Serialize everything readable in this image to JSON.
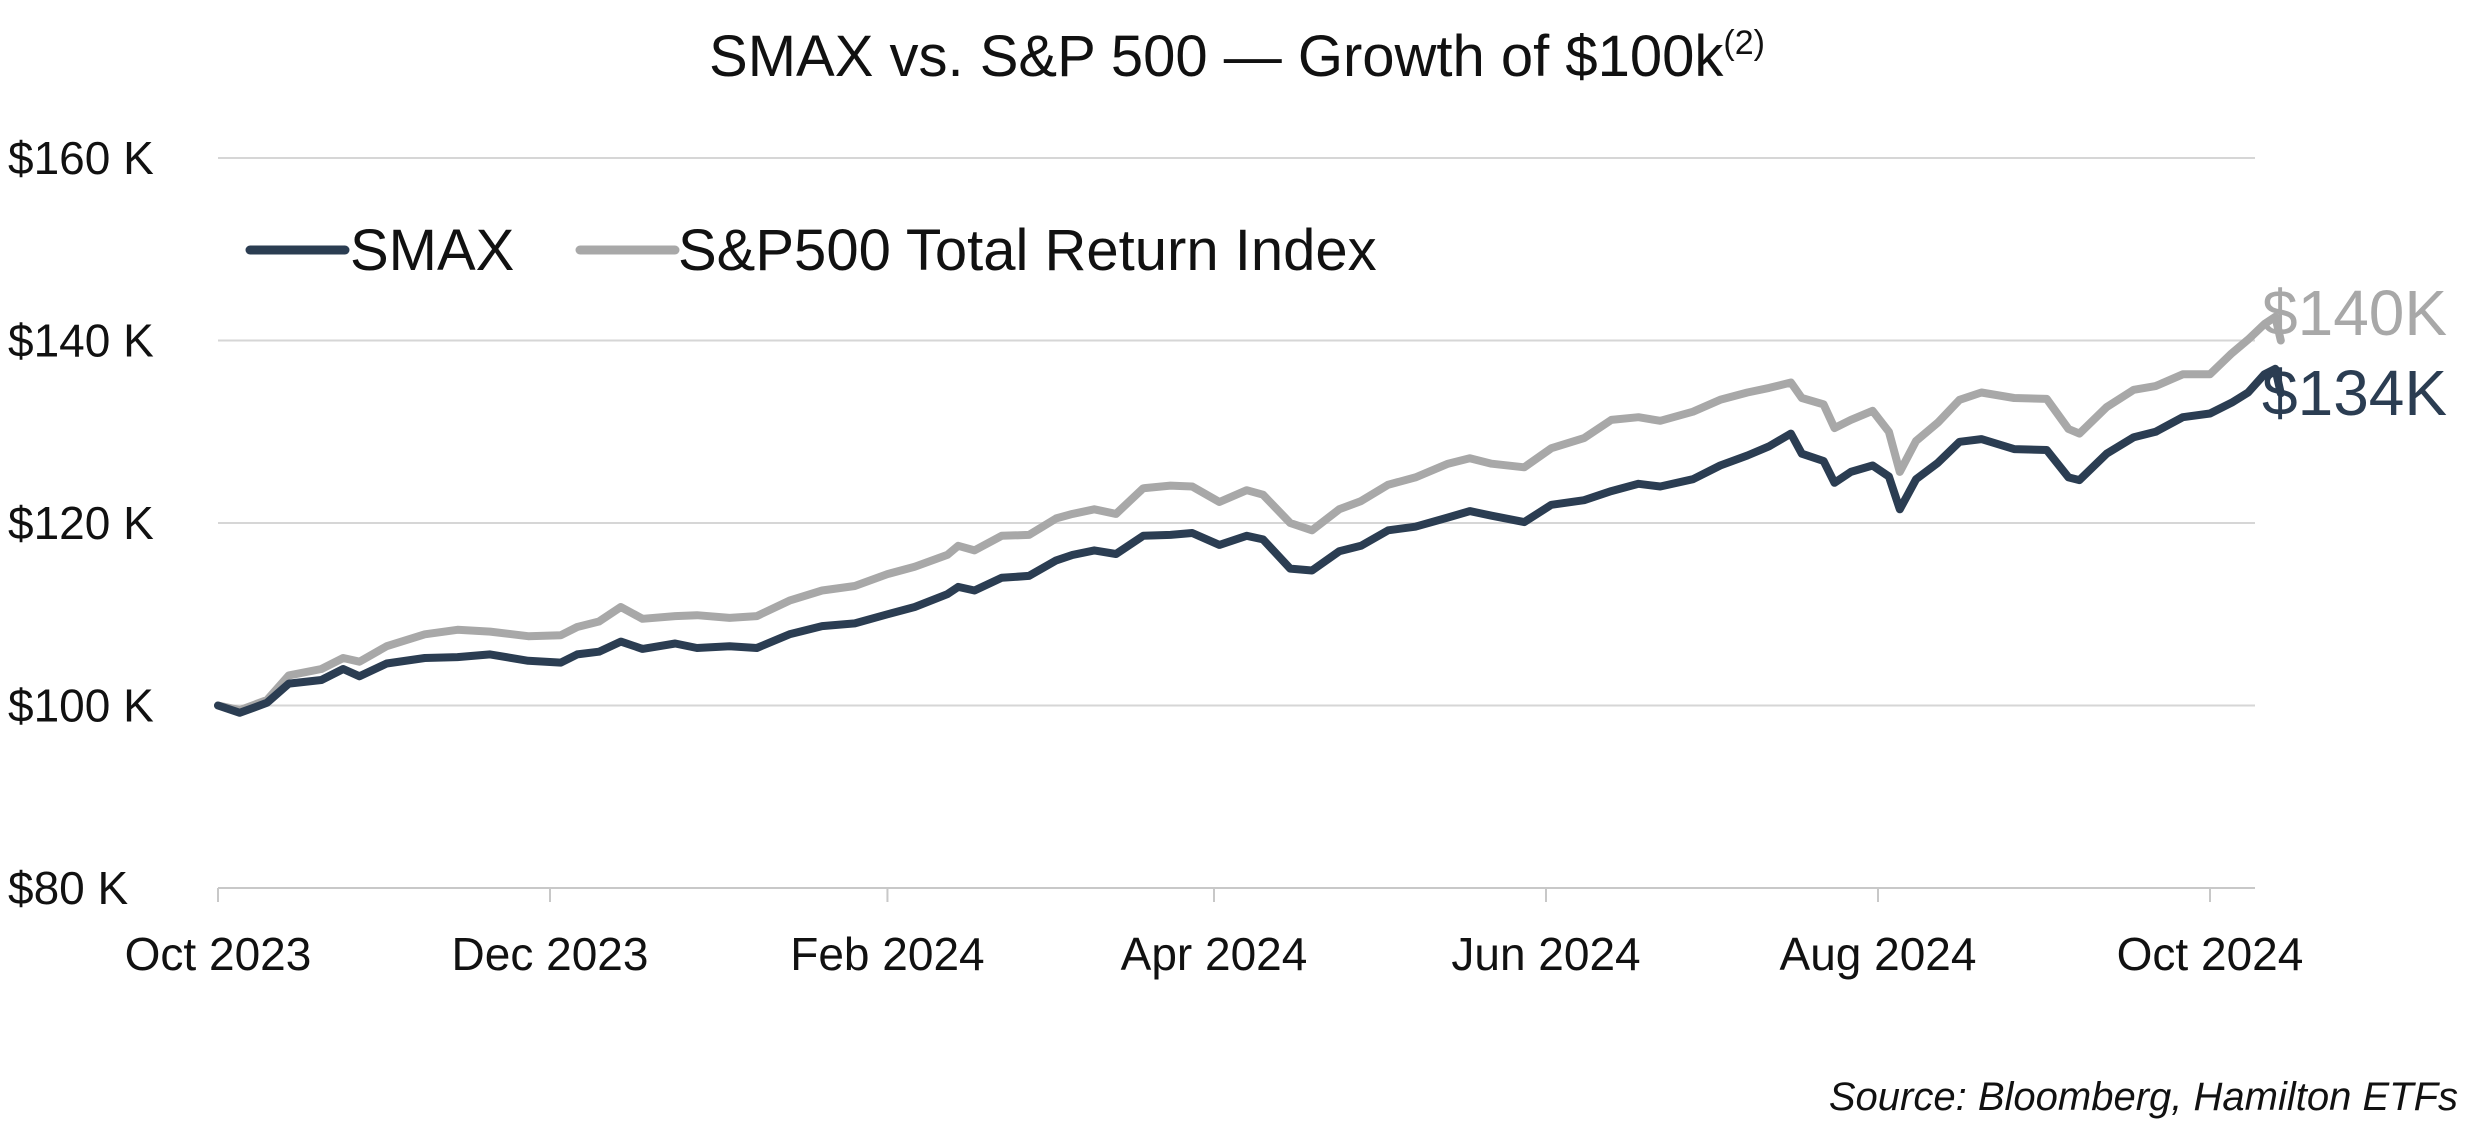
{
  "chart_data": {
    "type": "line",
    "title": "SMAX vs. S&P 500 — Growth of $100k",
    "title_superscript": "(2)",
    "source": "Source: Bloomberg, Hamilton ETFs",
    "xlabel": "",
    "ylabel": "",
    "ylim": [
      80,
      160
    ],
    "yticks": [
      {
        "value": 160,
        "label": "$160 K"
      },
      {
        "value": 140,
        "label": "$140 K"
      },
      {
        "value": 120,
        "label": "$120 K"
      },
      {
        "value": 100,
        "label": "$100 K"
      },
      {
        "value": 80,
        "label": "$80 K"
      }
    ],
    "xlim": [
      "2023-10-01",
      "2024-10-16"
    ],
    "xticks": [
      {
        "value": "2023-10-01",
        "label": "Oct 2023"
      },
      {
        "value": "2023-12-01",
        "label": "Dec 2023"
      },
      {
        "value": "2024-02-01",
        "label": "Feb 2024"
      },
      {
        "value": "2024-04-01",
        "label": "Apr 2024"
      },
      {
        "value": "2024-06-01",
        "label": "Jun 2024"
      },
      {
        "value": "2024-08-01",
        "label": "Aug 2024"
      },
      {
        "value": "2024-10-01",
        "label": "Oct 2024"
      }
    ],
    "grid": true,
    "legend_position": "top-left",
    "series": [
      {
        "name": "SMAX",
        "color": "#2b3d52",
        "end_label": "$134K",
        "points": [
          [
            "2023-10-01",
            100.0
          ],
          [
            "2023-10-05",
            99.2
          ],
          [
            "2023-10-10",
            100.3
          ],
          [
            "2023-10-14",
            102.4
          ],
          [
            "2023-10-20",
            102.8
          ],
          [
            "2023-10-24",
            104.0
          ],
          [
            "2023-10-27",
            103.2
          ],
          [
            "2023-11-01",
            104.6
          ],
          [
            "2023-11-08",
            105.2
          ],
          [
            "2023-11-14",
            105.3
          ],
          [
            "2023-11-20",
            105.6
          ],
          [
            "2023-11-27",
            104.9
          ],
          [
            "2023-12-03",
            104.7
          ],
          [
            "2023-12-06",
            105.6
          ],
          [
            "2023-12-10",
            105.9
          ],
          [
            "2023-12-14",
            107.0
          ],
          [
            "2023-12-18",
            106.2
          ],
          [
            "2023-12-24",
            106.8
          ],
          [
            "2023-12-28",
            106.3
          ],
          [
            "2024-01-03",
            106.5
          ],
          [
            "2024-01-08",
            106.3
          ],
          [
            "2024-01-14",
            107.8
          ],
          [
            "2024-01-20",
            108.7
          ],
          [
            "2024-01-26",
            109.0
          ],
          [
            "2024-02-01",
            110.0
          ],
          [
            "2024-02-06",
            110.8
          ],
          [
            "2024-02-12",
            112.2
          ],
          [
            "2024-02-14",
            113.0
          ],
          [
            "2024-02-17",
            112.6
          ],
          [
            "2024-02-22",
            114.0
          ],
          [
            "2024-02-27",
            114.2
          ],
          [
            "2024-03-03",
            115.9
          ],
          [
            "2024-03-06",
            116.5
          ],
          [
            "2024-03-10",
            117.0
          ],
          [
            "2024-03-14",
            116.6
          ],
          [
            "2024-03-19",
            118.6
          ],
          [
            "2024-03-24",
            118.7
          ],
          [
            "2024-03-28",
            118.9
          ],
          [
            "2024-04-02",
            117.6
          ],
          [
            "2024-04-07",
            118.6
          ],
          [
            "2024-04-10",
            118.2
          ],
          [
            "2024-04-15",
            115.0
          ],
          [
            "2024-04-19",
            114.8
          ],
          [
            "2024-04-24",
            116.9
          ],
          [
            "2024-04-28",
            117.5
          ],
          [
            "2024-05-03",
            119.2
          ],
          [
            "2024-05-08",
            119.6
          ],
          [
            "2024-05-14",
            120.6
          ],
          [
            "2024-05-18",
            121.3
          ],
          [
            "2024-05-22",
            120.8
          ],
          [
            "2024-05-28",
            120.1
          ],
          [
            "2024-06-02",
            122.0
          ],
          [
            "2024-06-08",
            122.5
          ],
          [
            "2024-06-13",
            123.5
          ],
          [
            "2024-06-18",
            124.3
          ],
          [
            "2024-06-22",
            124.0
          ],
          [
            "2024-06-28",
            124.8
          ],
          [
            "2024-07-03",
            126.3
          ],
          [
            "2024-07-08",
            127.4
          ],
          [
            "2024-07-12",
            128.4
          ],
          [
            "2024-07-16",
            129.8
          ],
          [
            "2024-07-18",
            127.6
          ],
          [
            "2024-07-22",
            126.8
          ],
          [
            "2024-07-24",
            124.4
          ],
          [
            "2024-07-27",
            125.6
          ],
          [
            "2024-07-31",
            126.3
          ],
          [
            "2024-08-03",
            125.1
          ],
          [
            "2024-08-05",
            121.5
          ],
          [
            "2024-08-08",
            124.8
          ],
          [
            "2024-08-12",
            126.6
          ],
          [
            "2024-08-16",
            128.9
          ],
          [
            "2024-08-20",
            129.2
          ],
          [
            "2024-08-26",
            128.1
          ],
          [
            "2024-09-01",
            128.0
          ],
          [
            "2024-09-05",
            125.0
          ],
          [
            "2024-09-07",
            124.7
          ],
          [
            "2024-09-12",
            127.6
          ],
          [
            "2024-09-17",
            129.4
          ],
          [
            "2024-09-21",
            130.0
          ],
          [
            "2024-09-26",
            131.6
          ],
          [
            "2024-10-01",
            132.0
          ],
          [
            "2024-10-05",
            133.2
          ],
          [
            "2024-10-08",
            134.3
          ],
          [
            "2024-10-11",
            136.3
          ],
          [
            "2024-10-13",
            136.9
          ],
          [
            "2024-10-14",
            134.2
          ]
        ]
      },
      {
        "name": "S&P500 Total Return Index",
        "color": "#a8a8a8",
        "end_label": "$140K",
        "points": [
          [
            "2023-10-01",
            100.0
          ],
          [
            "2023-10-05",
            99.5
          ],
          [
            "2023-10-10",
            100.6
          ],
          [
            "2023-10-14",
            103.3
          ],
          [
            "2023-10-20",
            104.0
          ],
          [
            "2023-10-24",
            105.2
          ],
          [
            "2023-10-27",
            104.8
          ],
          [
            "2023-11-01",
            106.5
          ],
          [
            "2023-11-08",
            107.8
          ],
          [
            "2023-11-14",
            108.3
          ],
          [
            "2023-11-20",
            108.1
          ],
          [
            "2023-11-27",
            107.6
          ],
          [
            "2023-12-03",
            107.7
          ],
          [
            "2023-12-06",
            108.6
          ],
          [
            "2023-12-10",
            109.2
          ],
          [
            "2023-12-14",
            110.8
          ],
          [
            "2023-12-18",
            109.5
          ],
          [
            "2023-12-24",
            109.8
          ],
          [
            "2023-12-28",
            109.9
          ],
          [
            "2024-01-03",
            109.6
          ],
          [
            "2024-01-08",
            109.8
          ],
          [
            "2024-01-14",
            111.5
          ],
          [
            "2024-01-20",
            112.6
          ],
          [
            "2024-01-26",
            113.1
          ],
          [
            "2024-02-01",
            114.4
          ],
          [
            "2024-02-06",
            115.2
          ],
          [
            "2024-02-12",
            116.5
          ],
          [
            "2024-02-14",
            117.5
          ],
          [
            "2024-02-17",
            117.0
          ],
          [
            "2024-02-22",
            118.6
          ],
          [
            "2024-02-27",
            118.7
          ],
          [
            "2024-03-03",
            120.5
          ],
          [
            "2024-03-06",
            121.0
          ],
          [
            "2024-03-10",
            121.5
          ],
          [
            "2024-03-14",
            121.0
          ],
          [
            "2024-03-19",
            123.8
          ],
          [
            "2024-03-24",
            124.1
          ],
          [
            "2024-03-28",
            124.0
          ],
          [
            "2024-04-02",
            122.3
          ],
          [
            "2024-04-07",
            123.6
          ],
          [
            "2024-04-10",
            123.1
          ],
          [
            "2024-04-15",
            120.0
          ],
          [
            "2024-04-19",
            119.2
          ],
          [
            "2024-04-24",
            121.5
          ],
          [
            "2024-04-28",
            122.4
          ],
          [
            "2024-05-03",
            124.2
          ],
          [
            "2024-05-08",
            125.0
          ],
          [
            "2024-05-14",
            126.5
          ],
          [
            "2024-05-18",
            127.1
          ],
          [
            "2024-05-22",
            126.5
          ],
          [
            "2024-05-28",
            126.1
          ],
          [
            "2024-06-02",
            128.2
          ],
          [
            "2024-06-08",
            129.3
          ],
          [
            "2024-06-13",
            131.3
          ],
          [
            "2024-06-18",
            131.6
          ],
          [
            "2024-06-22",
            131.2
          ],
          [
            "2024-06-28",
            132.2
          ],
          [
            "2024-07-03",
            133.5
          ],
          [
            "2024-07-08",
            134.3
          ],
          [
            "2024-07-12",
            134.8
          ],
          [
            "2024-07-16",
            135.4
          ],
          [
            "2024-07-18",
            133.7
          ],
          [
            "2024-07-22",
            133.0
          ],
          [
            "2024-07-24",
            130.4
          ],
          [
            "2024-07-27",
            131.3
          ],
          [
            "2024-07-31",
            132.3
          ],
          [
            "2024-08-03",
            130.0
          ],
          [
            "2024-08-05",
            125.6
          ],
          [
            "2024-08-08",
            129.0
          ],
          [
            "2024-08-12",
            131.0
          ],
          [
            "2024-08-16",
            133.5
          ],
          [
            "2024-08-20",
            134.3
          ],
          [
            "2024-08-26",
            133.7
          ],
          [
            "2024-09-01",
            133.6
          ],
          [
            "2024-09-05",
            130.3
          ],
          [
            "2024-09-07",
            129.8
          ],
          [
            "2024-09-12",
            132.7
          ],
          [
            "2024-09-17",
            134.6
          ],
          [
            "2024-09-21",
            135.0
          ],
          [
            "2024-09-26",
            136.3
          ],
          [
            "2024-10-01",
            136.3
          ],
          [
            "2024-10-05",
            138.6
          ],
          [
            "2024-10-08",
            140.1
          ],
          [
            "2024-10-11",
            141.8
          ],
          [
            "2024-10-13",
            142.6
          ],
          [
            "2024-10-14",
            140.0
          ]
        ]
      }
    ]
  }
}
